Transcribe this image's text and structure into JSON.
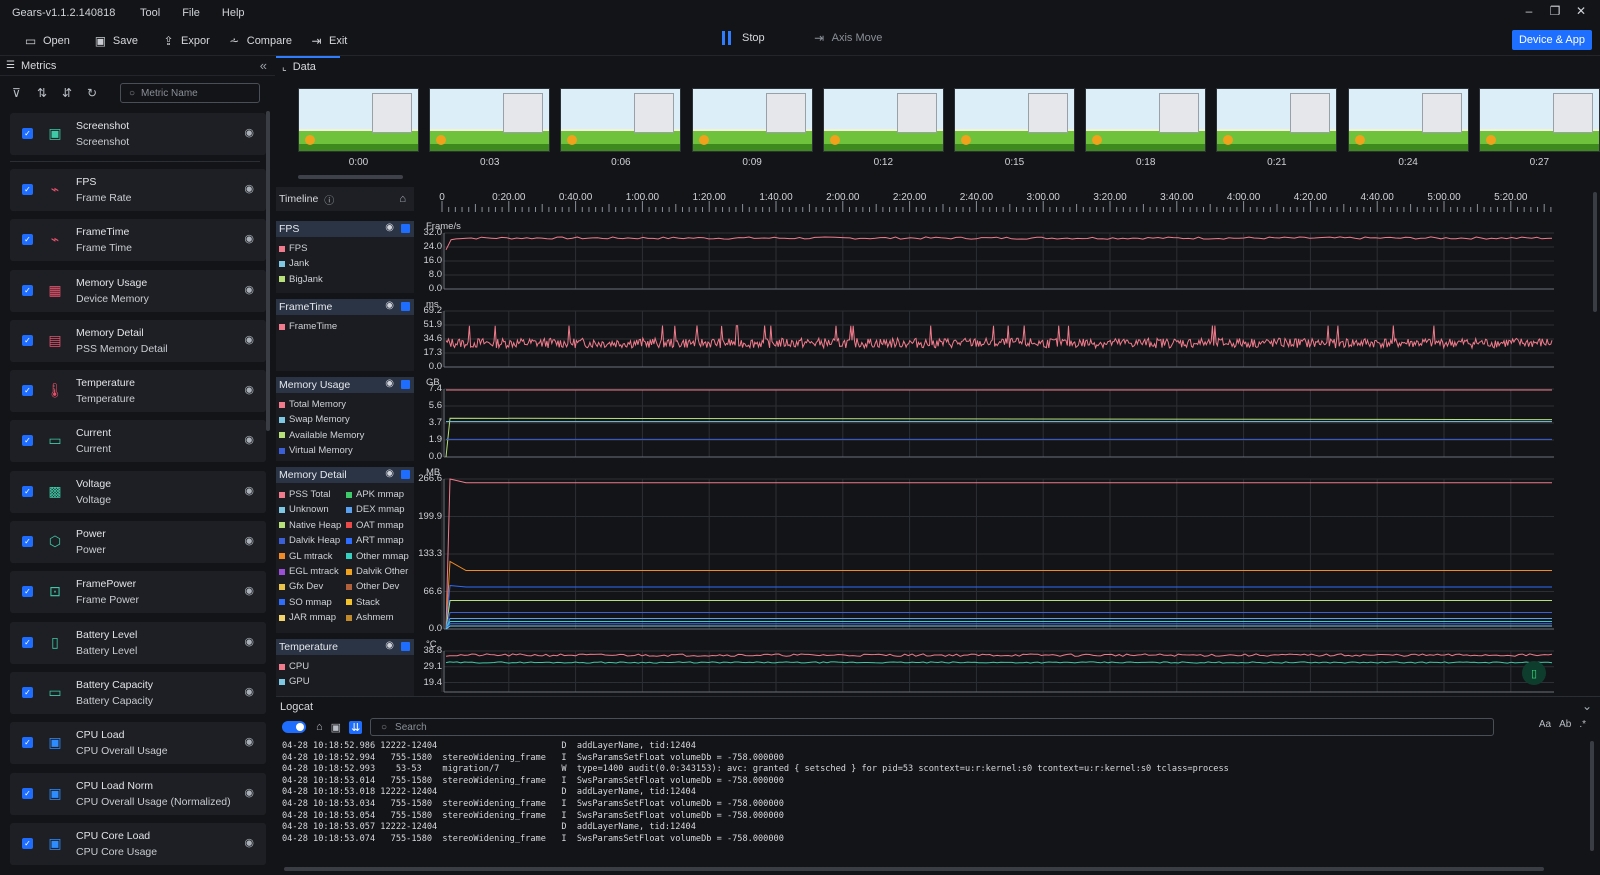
{
  "window": {
    "title": "Gears-v1.1.2.140818",
    "menu": [
      "Tool",
      "File",
      "Help"
    ],
    "controls": [
      "–",
      "❐",
      "✕"
    ]
  },
  "toolbar": {
    "open": "Open",
    "save": "Save",
    "export": "Expor",
    "compare": "Compare",
    "exit": "Exit",
    "stop": "Stop",
    "axis_move": "Axis Move",
    "device_app": "Device & App"
  },
  "left_panel": {
    "title": "Metrics",
    "search_placeholder": "Metric Name",
    "metrics": [
      {
        "name": "Screenshot",
        "sub": "Screenshot",
        "icon": "image-icon",
        "icon_color": "#3fc9a6",
        "glyph": "▣"
      },
      {
        "name": "FPS",
        "sub": "Frame Rate",
        "icon": "fps-icon",
        "icon_color": "#e8506a",
        "glyph": "⌁"
      },
      {
        "name": "FrameTime",
        "sub": "Frame Time",
        "icon": "frametime-icon",
        "icon_color": "#e8506a",
        "glyph": "⌁"
      },
      {
        "name": "Memory Usage",
        "sub": "Device Memory",
        "icon": "memory-icon",
        "icon_color": "#e8506a",
        "glyph": "▦"
      },
      {
        "name": "Memory Detail",
        "sub": "PSS Memory Detail",
        "icon": "memory-detail-icon",
        "icon_color": "#e8506a",
        "glyph": "▤"
      },
      {
        "name": "Temperature",
        "sub": "Temperature",
        "icon": "thermometer-icon",
        "icon_color": "#e8506a",
        "glyph": "🌡"
      },
      {
        "name": "Current",
        "sub": "Current",
        "icon": "current-icon",
        "icon_color": "#3fc9a6",
        "glyph": "▭"
      },
      {
        "name": "Voltage",
        "sub": "Voltage",
        "icon": "voltage-icon",
        "icon_color": "#3fc9a6",
        "glyph": "▩"
      },
      {
        "name": "Power",
        "sub": "Power",
        "icon": "power-icon",
        "icon_color": "#3fc9a6",
        "glyph": "⬡"
      },
      {
        "name": "FramePower",
        "sub": "Frame Power",
        "icon": "frame-power-icon",
        "icon_color": "#3fc9a6",
        "glyph": "⊡"
      },
      {
        "name": "Battery Level",
        "sub": "Battery Level",
        "icon": "battery-icon",
        "icon_color": "#3fc9a6",
        "glyph": "▯"
      },
      {
        "name": "Battery Capacity",
        "sub": "Battery Capacity",
        "icon": "battery-capacity-icon",
        "icon_color": "#3fc9a6",
        "glyph": "▭"
      },
      {
        "name": "CPU Load",
        "sub": "CPU Overall Usage",
        "icon": "cpu-icon",
        "icon_color": "#2f8cff",
        "glyph": "▣"
      },
      {
        "name": "CPU Load Norm",
        "sub": "CPU Overall Usage (Normalized)",
        "icon": "cpu-norm-icon",
        "icon_color": "#2f8cff",
        "glyph": "▣"
      },
      {
        "name": "CPU Core Load",
        "sub": "CPU Core Usage",
        "icon": "cpu-core-icon",
        "icon_color": "#2f8cff",
        "glyph": "▣"
      }
    ]
  },
  "main": {
    "tab": "Data",
    "screenshot_times": [
      "0:00",
      "0:03",
      "0:06",
      "0:09",
      "0:12",
      "0:15",
      "0:18",
      "0:21",
      "0:24",
      "0:27"
    ],
    "timeline_label": "Timeline",
    "timeline_ticks": [
      "0",
      "0:20.00",
      "0:40.00",
      "1:00.00",
      "1:20.00",
      "1:40.00",
      "2:00.00",
      "2:20.00",
      "2:40.00",
      "3:00.00",
      "3:20.00",
      "3:40.00",
      "4:00.00",
      "4:20.00",
      "4:40.00",
      "5:00.00",
      "5:20.00"
    ]
  },
  "charts": [
    {
      "title": "FPS",
      "unit": "Frame/s",
      "y_labels": [
        "32.0",
        "24.0",
        "16.0",
        "8.0",
        "0.0"
      ],
      "legend": [
        {
          "label": "FPS",
          "color": "#f07b8c"
        },
        {
          "label": "Jank",
          "color": "#7ec8e3"
        },
        {
          "label": "BigJank",
          "color": "#b8e07a"
        }
      ]
    },
    {
      "title": "FrameTime",
      "unit": "ms",
      "y_labels": [
        "69.2",
        "51.9",
        "34.6",
        "17.3",
        "0.0"
      ],
      "legend": [
        {
          "label": "FrameTime",
          "color": "#f07b8c"
        }
      ]
    },
    {
      "title": "Memory Usage",
      "unit": "GB",
      "y_labels": [
        "7.4",
        "5.6",
        "3.7",
        "1.9",
        "0.0"
      ],
      "legend": [
        {
          "label": "Total Memory",
          "color": "#f07b8c"
        },
        {
          "label": "Swap Memory",
          "color": "#7ec8e3"
        },
        {
          "label": "Available Memory",
          "color": "#b8e07a"
        },
        {
          "label": "Virtual Memory",
          "color": "#3b5fd6"
        }
      ]
    },
    {
      "title": "Memory Detail",
      "unit": "MB",
      "y_labels": [
        "266.6",
        "199.9",
        "133.3",
        "66.6",
        "0.0"
      ],
      "legend": [
        {
          "label": "PSS Total",
          "color": "#f07b8c"
        },
        {
          "label": "Unknown",
          "color": "#7ec8e3"
        },
        {
          "label": "Native Heap",
          "color": "#b8e07a"
        },
        {
          "label": "Dalvik Heap",
          "color": "#3b5fd6"
        },
        {
          "label": "GL mtrack",
          "color": "#f08a24"
        },
        {
          "label": "EGL mtrack",
          "color": "#9b4fd6"
        },
        {
          "label": "Gfx Dev",
          "color": "#e8c24a"
        },
        {
          "label": "SO mmap",
          "color": "#2f6dff"
        },
        {
          "label": "JAR mmap",
          "color": "#f2d36b"
        },
        {
          "label": "APK mmap",
          "color": "#3fc96a"
        },
        {
          "label": "DEX mmap",
          "color": "#5aa0f0"
        },
        {
          "label": "OAT mmap",
          "color": "#e84a4a"
        },
        {
          "label": "ART mmap",
          "color": "#2f6dff"
        },
        {
          "label": "Other mmap",
          "color": "#35d0c0"
        },
        {
          "label": "Dalvik Other",
          "color": "#f0a21c"
        },
        {
          "label": "Other Dev",
          "color": "#b0603a"
        },
        {
          "label": "Stack",
          "color": "#f2c22a"
        },
        {
          "label": "Ashmem",
          "color": "#c08a2a"
        }
      ]
    },
    {
      "title": "Temperature",
      "unit": "°C",
      "y_labels": [
        "38.8",
        "29.1",
        "19.4"
      ],
      "legend": [
        {
          "label": "CPU",
          "color": "#f07b8c"
        },
        {
          "label": "GPU",
          "color": "#7ec8e3"
        }
      ]
    }
  ],
  "logcat": {
    "title": "Logcat",
    "search_placeholder": "Search",
    "right_tools": [
      "Aa",
      "Ab",
      ".*"
    ],
    "lines": [
      "04-28 10:18:52.986 12222-12404                        D  addLayerName, tid:12404",
      "04-28 10:18:52.994   755-1580  stereoWidening_frame   I  SwsParamsSetFloat volumeDb = -758.000000",
      "04-28 10:18:52.993    53-53    migration/7            W  type=1400 audit(0.0:343153): avc: granted { setsched } for pid=53 scontext=u:r:kernel:s0 tcontext=u:r:kernel:s0 tclass=process",
      "04-28 10:18:53.014   755-1580  stereoWidening_frame   I  SwsParamsSetFloat volumeDb = -758.000000",
      "04-28 10:18:53.018 12222-12404                        D  addLayerName, tid:12404",
      "04-28 10:18:53.034   755-1580  stereoWidening_frame   I  SwsParamsSetFloat volumeDb = -758.000000",
      "04-28 10:18:53.054   755-1580  stereoWidening_frame   I  SwsParamsSetFloat volumeDb = -758.000000",
      "04-28 10:18:53.057 12222-12404                        D  addLayerName, tid:12404",
      "04-28 10:18:53.074   755-1580  stereoWidening_frame   I  SwsParamsSetFloat volumeDb = -758.000000"
    ]
  }
}
